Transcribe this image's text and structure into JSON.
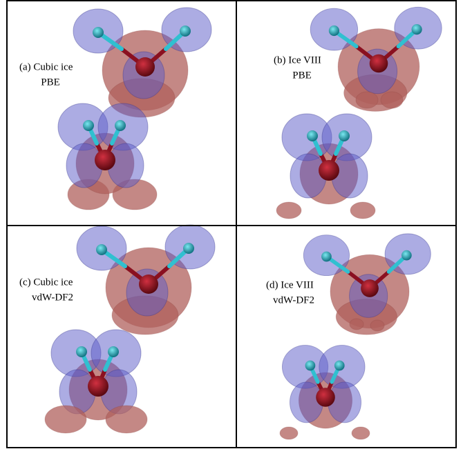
{
  "panels": [
    {
      "label": "(a) Cubic ice",
      "method": "PBE"
    },
    {
      "label": "(b) Ice VIII",
      "method": "PBE"
    },
    {
      "label": "(c) Cubic ice",
      "method": "vdW-DF2"
    },
    {
      "label": "(d) Ice VIII",
      "method": "vdW-DF2"
    }
  ]
}
